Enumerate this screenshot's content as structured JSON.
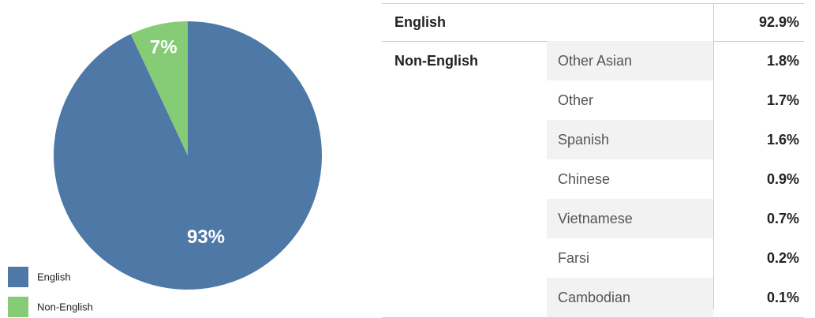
{
  "chart_data": {
    "type": "pie",
    "categories": [
      "English",
      "Non-English"
    ],
    "values": [
      93,
      7
    ],
    "value_labels": [
      "93%",
      "7%"
    ],
    "colors": [
      "#4e78a6",
      "#86cc77"
    ],
    "legend": "bottom-left"
  },
  "table": {
    "rows": [
      {
        "label": "English",
        "value": "92.9%"
      }
    ],
    "group": {
      "label": "Non-English",
      "rows": [
        [
          "Other Asian",
          "1.8%"
        ],
        [
          "Other",
          "1.7%"
        ],
        [
          "Spanish",
          "1.6%"
        ],
        [
          "Chinese",
          "0.9%"
        ],
        [
          "Vietnamese",
          "0.7%"
        ],
        [
          "Farsi",
          "0.2%"
        ],
        [
          "Cambodian",
          "0.1%"
        ]
      ]
    }
  }
}
